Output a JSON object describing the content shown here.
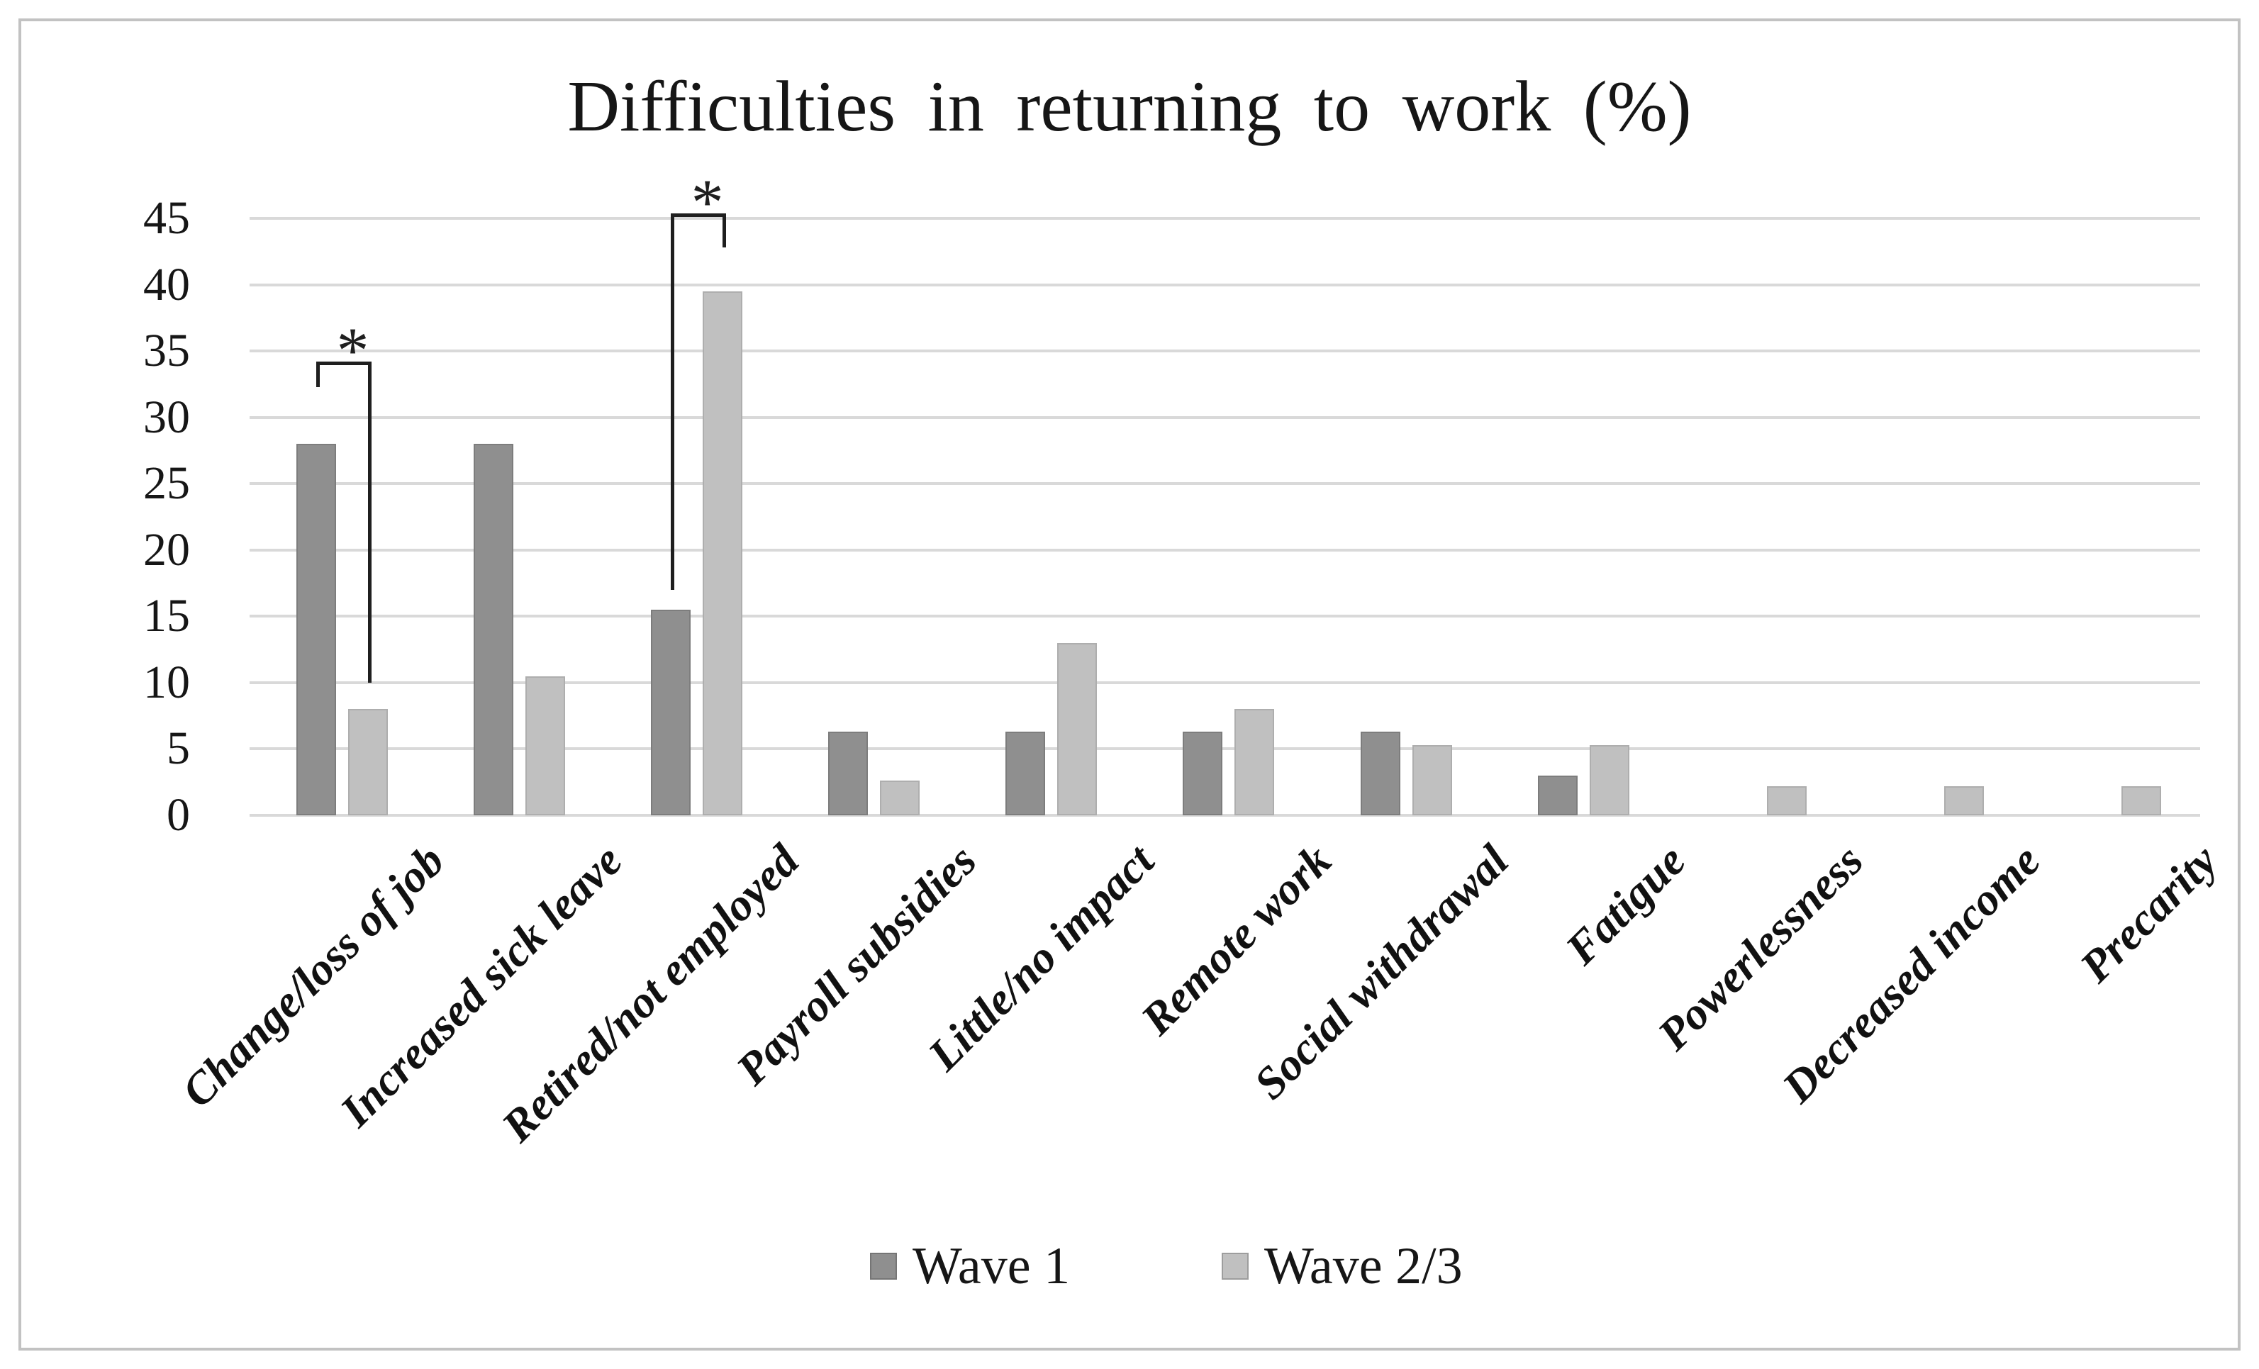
{
  "figure": {
    "title": "Difficulties in returning to work (%)"
  },
  "chart_data": {
    "type": "bar",
    "title": "Difficulties in returning to work (%)",
    "categories": [
      "Change/loss of job",
      "Increased sick leave",
      "Retired/not employed",
      "Payroll subsidies",
      "Little/no impact",
      "Remote work",
      "Social withdrawal",
      "Fatigue",
      "Powerlessness",
      "Decreased income",
      "Precarity"
    ],
    "series": [
      {
        "name": "Wave 1",
        "color": "#8f8f8f",
        "values": [
          28,
          28,
          15.5,
          6.3,
          6.3,
          6.3,
          6.3,
          3,
          0,
          0,
          0
        ]
      },
      {
        "name": "Wave 2/3",
        "color": "#c0c0c0",
        "values": [
          8,
          10.5,
          39.5,
          2.6,
          13,
          8,
          5.3,
          5.3,
          2.2,
          2.2,
          2.2
        ]
      }
    ],
    "ylim": [
      0,
      45
    ],
    "y_ticks": [
      45,
      40,
      35,
      30,
      25,
      20,
      15,
      10,
      5,
      0
    ],
    "grid": true,
    "legend_position": "bottom",
    "annotations": [
      {
        "type": "significance-bracket",
        "label": "*",
        "category": "Change/loss of job",
        "category_index": 0,
        "between": [
          "Wave 1",
          "Wave 2/3"
        ],
        "bar_y": 34.2,
        "left_drop_to": 32.3,
        "right_drop_to": 10.0
      },
      {
        "type": "significance-bracket",
        "label": "*",
        "category": "Retired/not employed",
        "category_index": 2,
        "between": [
          "Wave 1",
          "Wave 2/3"
        ],
        "bar_y": 45.4,
        "left_drop_to": 17.0,
        "right_drop_to": 42.8
      }
    ]
  },
  "legend": {
    "items": [
      {
        "label": "Wave 1",
        "color": "#8f8f8f"
      },
      {
        "label": "Wave 2/3",
        "color": "#c0c0c0"
      }
    ]
  }
}
